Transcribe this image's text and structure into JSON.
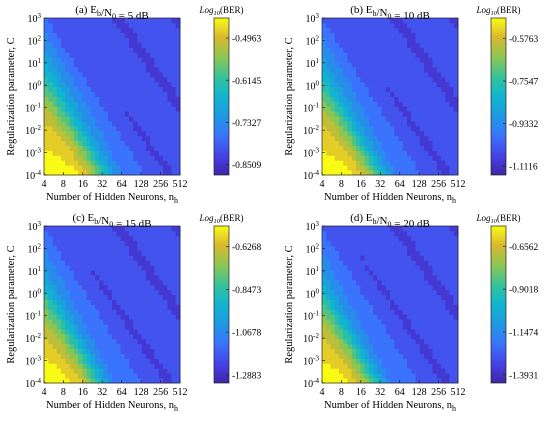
{
  "chart_data": [
    {
      "type": "heatmap",
      "title": "(a) E_b/N_0 = 5 dB",
      "xlabel": "Number of Hidden Neurons, n_h",
      "ylabel": "Regularization parameter, C",
      "x_ticks": [
        "4",
        "8",
        "16",
        "32",
        "64",
        "128",
        "256",
        "512"
      ],
      "y_ticks": [
        "10^-4",
        "10^-3",
        "10^-2",
        "10^-1",
        "10^0",
        "10^1",
        "10^2",
        "10^3"
      ],
      "colorbar_label": "Log10(BER)",
      "colorbar_ticks": [
        "-0.4963",
        "-0.6145",
        "-0.7327",
        "-0.8509"
      ],
      "zlim": [
        -0.88,
        -0.44
      ]
    },
    {
      "type": "heatmap",
      "title": "(b) E_b/N_0 = 10 dB",
      "xlabel": "Number of Hidden Neurons, n_h",
      "ylabel": "Regularization parameter, C",
      "x_ticks": [
        "4",
        "8",
        "16",
        "32",
        "64",
        "128",
        "256",
        "512"
      ],
      "y_ticks": [
        "10^-4",
        "10^-3",
        "10^-2",
        "10^-1",
        "10^0",
        "10^1",
        "10^2",
        "10^3"
      ],
      "colorbar_label": "Log10(BER)",
      "colorbar_ticks": [
        "-0.5763",
        "-0.7547",
        "-0.9332",
        "-1.1116"
      ],
      "zlim": [
        -1.15,
        -0.49
      ]
    },
    {
      "type": "heatmap",
      "title": "(c) E_b/N_0 = 15 dB",
      "xlabel": "Number of Hidden Neurons, n_h",
      "ylabel": "Regularization parameter, C",
      "x_ticks": [
        "4",
        "8",
        "16",
        "32",
        "64",
        "128",
        "256",
        "512"
      ],
      "y_ticks": [
        "10^-4",
        "10^-3",
        "10^-2",
        "10^-1",
        "10^0",
        "10^1",
        "10^2",
        "10^3"
      ],
      "colorbar_label": "Log10(BER)",
      "colorbar_ticks": [
        "-0.6268",
        "-0.8473",
        "-1.0678",
        "-1.2883"
      ],
      "zlim": [
        -1.33,
        -0.52
      ]
    },
    {
      "type": "heatmap",
      "title": "(d) E_b/N_0 = 20 dB",
      "xlabel": "Number of Hidden Neurons, n_h",
      "ylabel": "Regularization parameter, C",
      "x_ticks": [
        "4",
        "8",
        "16",
        "32",
        "64",
        "128",
        "256",
        "512"
      ],
      "y_ticks": [
        "10^-4",
        "10^-3",
        "10^-2",
        "10^-1",
        "10^0",
        "10^1",
        "10^2",
        "10^3"
      ],
      "colorbar_label": "Log10(BER)",
      "colorbar_ticks": [
        "-0.6562",
        "-0.9018",
        "-1.1474",
        "-1.3931"
      ],
      "zlim": [
        -1.44,
        -0.54
      ]
    }
  ],
  "colormap": "parula"
}
